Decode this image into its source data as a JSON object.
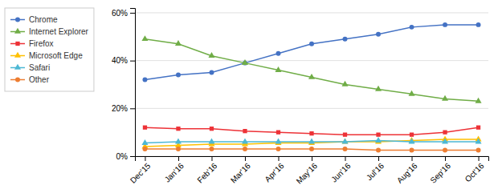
{
  "chart_data": {
    "type": "line",
    "categories": [
      "Dec'15",
      "Jan'16",
      "Feb'16",
      "Mar'16",
      "Apr'16",
      "May'16",
      "Jun'16",
      "Jul'16",
      "Aug'16",
      "Sep'16",
      "Oct'16"
    ],
    "series": [
      {
        "name": "Chrome",
        "color": "#4472c4",
        "marker": "circle",
        "values": [
          32,
          34,
          35,
          39,
          43,
          47,
          49,
          51,
          54,
          55,
          55
        ]
      },
      {
        "name": "Internet Explorer",
        "color": "#70ad47",
        "marker": "triangle",
        "values": [
          49,
          47,
          42,
          39,
          36,
          33,
          30,
          28,
          26,
          24,
          23
        ]
      },
      {
        "name": "Firefox",
        "color": "#ed3237",
        "marker": "square",
        "values": [
          12,
          11.5,
          11.5,
          10.5,
          10,
          9.5,
          9,
          9,
          9,
          10,
          12
        ]
      },
      {
        "name": "Microsoft Edge",
        "color": "#ffc000",
        "marker": "triangle",
        "values": [
          4,
          4.5,
          5,
          5,
          5.5,
          5.5,
          6,
          6,
          6.5,
          7,
          7
        ]
      },
      {
        "name": "Safari",
        "color": "#4db8d4",
        "marker": "triangle",
        "values": [
          5.5,
          6,
          6,
          6,
          6,
          6,
          6,
          6.5,
          6,
          6,
          6
        ]
      },
      {
        "name": "Other",
        "color": "#ed7d31",
        "marker": "circle",
        "values": [
          3,
          3,
          3,
          3,
          3,
          3,
          3,
          2.5,
          2.5,
          2.5,
          2.5
        ]
      }
    ],
    "ylim": [
      0,
      62
    ],
    "yticks": [
      {
        "value": 0,
        "label": "0%"
      },
      {
        "value": 20,
        "label": "20%"
      },
      {
        "value": 40,
        "label": "40%"
      },
      {
        "value": 60,
        "label": "60%"
      }
    ],
    "grid": true,
    "legend": "left"
  }
}
